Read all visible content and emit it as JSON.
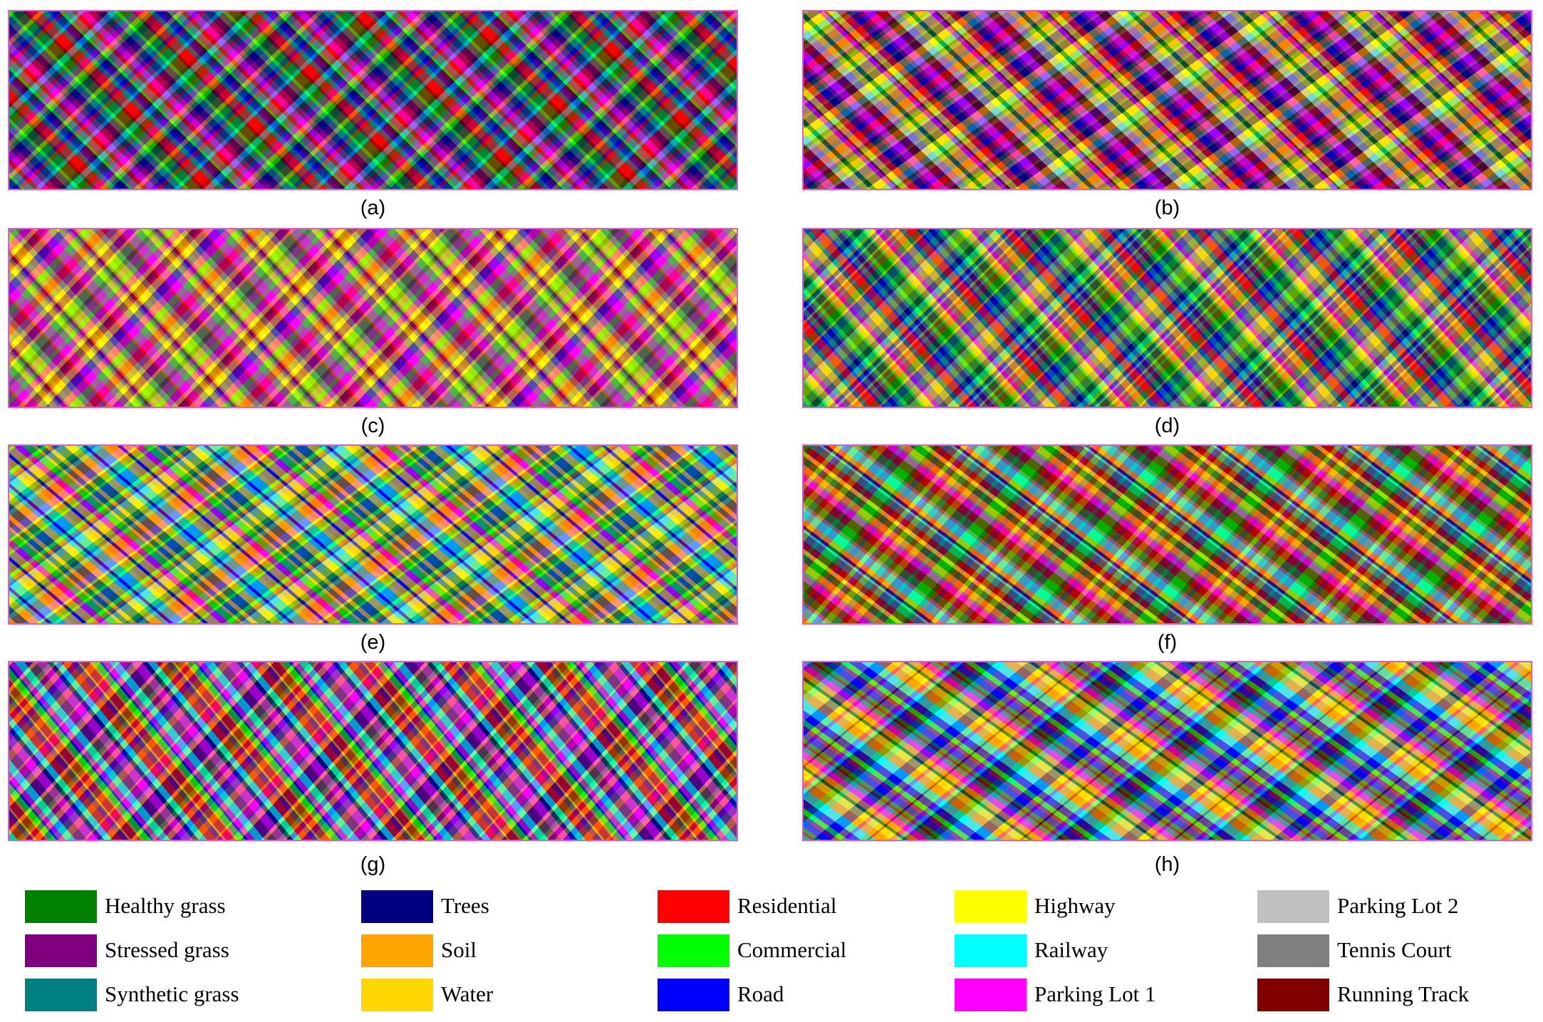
{
  "panels": [
    {
      "label": "(a)"
    },
    {
      "label": "(b)"
    },
    {
      "label": "(c)"
    },
    {
      "label": "(d)"
    },
    {
      "label": "(e)"
    },
    {
      "label": "(f)"
    },
    {
      "label": "(g)"
    },
    {
      "label": "(h)"
    }
  ],
  "legend": [
    {
      "label": "Healthy grass",
      "color": "#008000"
    },
    {
      "label": "Stressed grass",
      "color": "#800080"
    },
    {
      "label": "Synthetic grass",
      "color": "#008080"
    },
    {
      "label": "Trees",
      "color": "#000080"
    },
    {
      "label": "Soil",
      "color": "#FFA500"
    },
    {
      "label": "Water",
      "color": "#FFD700"
    },
    {
      "label": "Residential",
      "color": "#FF0000"
    },
    {
      "label": "Commercial",
      "color": "#00FF00"
    },
    {
      "label": "Road",
      "color": "#0000FF"
    },
    {
      "label": "Highway",
      "color": "#FFFF00"
    },
    {
      "label": "Railway",
      "color": "#00FFFF"
    },
    {
      "label": "Parking Lot 1",
      "color": "#FF00FF"
    },
    {
      "label": "Parking Lot 2",
      "color": "#C0C0C0"
    },
    {
      "label": "Tennis Court",
      "color": "#808080"
    },
    {
      "label": "Running Track",
      "color": "#800000"
    }
  ]
}
